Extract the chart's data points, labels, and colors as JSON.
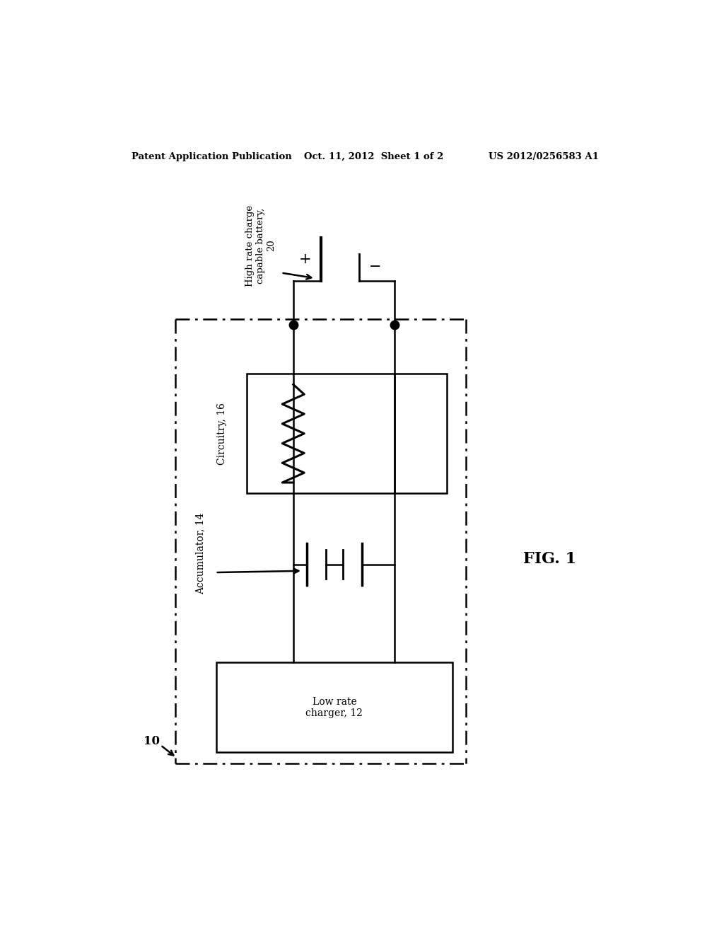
{
  "bg_color": "#ffffff",
  "header_left": "Patent Application Publication",
  "header_mid": "Oct. 11, 2012  Sheet 1 of 2",
  "header_right": "US 2012/0256583 A1",
  "fig_label": "FIG. 1",
  "system_label": "10",
  "charger_label": "Low rate\ncharger, 12",
  "accumulator_label": "Accumulator, 14",
  "circuitry_label": "Circuitry, 16",
  "battery_label": "High rate charge\ncapable battery,\n20",
  "line_color": "#000000",
  "lw_main": 1.8,
  "dot_size": 9,
  "header_fontsize": 9.5,
  "label_fontsize": 10,
  "fig_fontsize": 16,
  "plus_minus_fontsize": 15
}
